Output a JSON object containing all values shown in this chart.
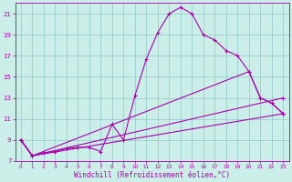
{
  "xlabel": "Windchill (Refroidissement éolien,°C)",
  "bg_color": "#cceee8",
  "grid_color": "#99cccc",
  "line_color": "#aa00aa",
  "xlim": [
    -0.5,
    23.5
  ],
  "ylim": [
    7,
    22
  ],
  "yticks": [
    7,
    9,
    11,
    13,
    15,
    17,
    19,
    21
  ],
  "xticks": [
    0,
    1,
    2,
    3,
    4,
    5,
    6,
    7,
    8,
    9,
    10,
    11,
    12,
    13,
    14,
    15,
    16,
    17,
    18,
    19,
    20,
    21,
    22,
    23
  ],
  "series": [
    {
      "x": [
        0,
        1,
        2,
        3,
        4,
        5,
        6,
        7,
        8,
        9,
        10,
        11,
        12,
        13,
        14,
        15,
        16,
        17,
        18,
        19,
        20,
        21,
        22,
        23
      ],
      "y": [
        9.0,
        7.5,
        7.8,
        7.9,
        8.2,
        8.3,
        8.3,
        7.9,
        10.5,
        9.0,
        13.2,
        16.7,
        19.2,
        21.0,
        21.6,
        21.0,
        19.0,
        18.5,
        17.5,
        17.0,
        15.5,
        13.0,
        12.5,
        11.5
      ]
    },
    {
      "x": [
        0,
        1,
        20,
        21,
        22,
        23
      ],
      "y": [
        9.0,
        7.5,
        15.5,
        13.0,
        12.5,
        11.5
      ]
    },
    {
      "x": [
        0,
        1,
        23
      ],
      "y": [
        9.0,
        7.5,
        13.0
      ]
    },
    {
      "x": [
        0,
        1,
        23
      ],
      "y": [
        9.0,
        7.5,
        11.5
      ]
    }
  ]
}
